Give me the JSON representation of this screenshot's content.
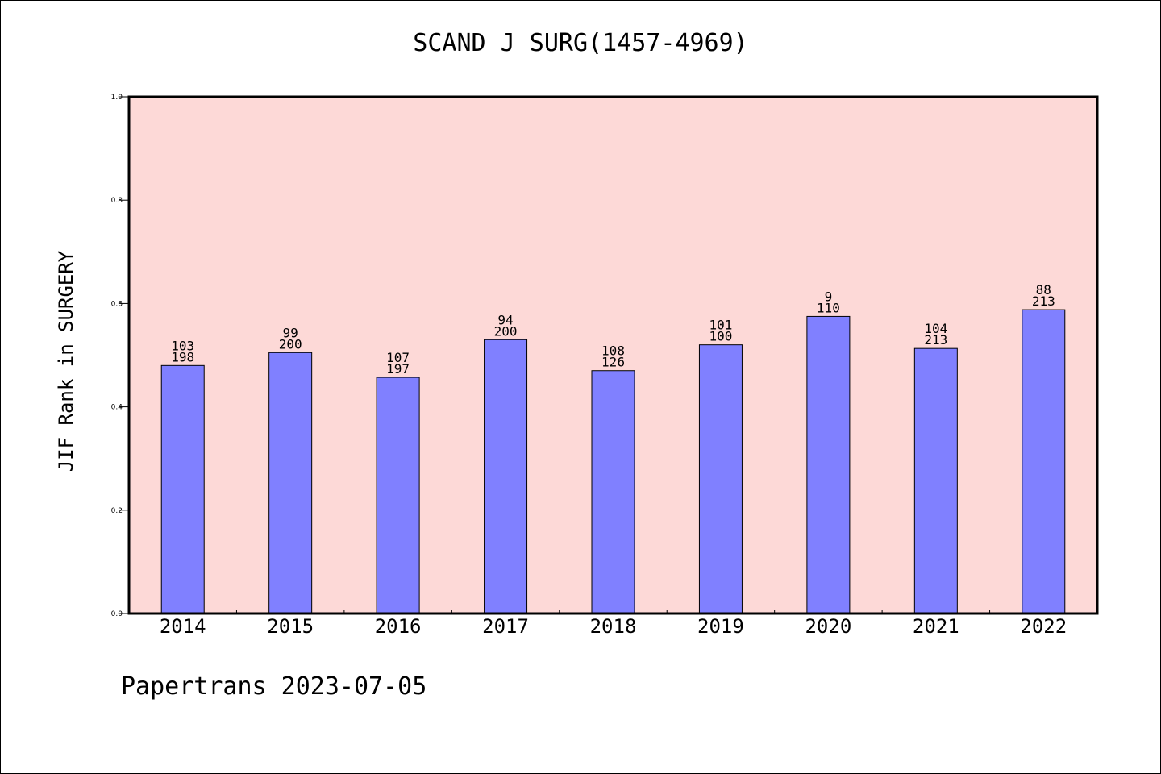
{
  "chart_data": {
    "type": "bar",
    "title": "SCAND J SURG(1457-4969)",
    "xlabel": "",
    "ylabel": "JIF Rank in SURGERY",
    "categories": [
      "2014",
      "2015",
      "2016",
      "2017",
      "2018",
      "2019",
      "2020",
      "2021",
      "2022"
    ],
    "values": [
      0.48,
      0.505,
      0.457,
      0.53,
      0.47,
      0.52,
      0.575,
      0.513,
      0.588
    ],
    "rank_labels": [
      "103",
      "99",
      "107",
      "94",
      "108",
      "101",
      "9",
      "104",
      "88"
    ],
    "total_labels": [
      "198",
      "200",
      "197",
      "200",
      "126",
      "100",
      "110",
      "213",
      "213"
    ],
    "ylim": [
      0,
      1.0
    ],
    "yticks": [
      "0.0",
      "0.2",
      "0.4",
      "0.6",
      "0.8",
      "1.0"
    ],
    "ytick_values": [
      0,
      0.2,
      0.4,
      0.6,
      0.8,
      1.0
    ],
    "grid": false,
    "colors": {
      "plot_background": "#fdd9d7",
      "bar": "#8080ff",
      "bar_edge": "#000000",
      "axis": "#000000"
    }
  },
  "footer": "Papertrans 2023-07-05"
}
